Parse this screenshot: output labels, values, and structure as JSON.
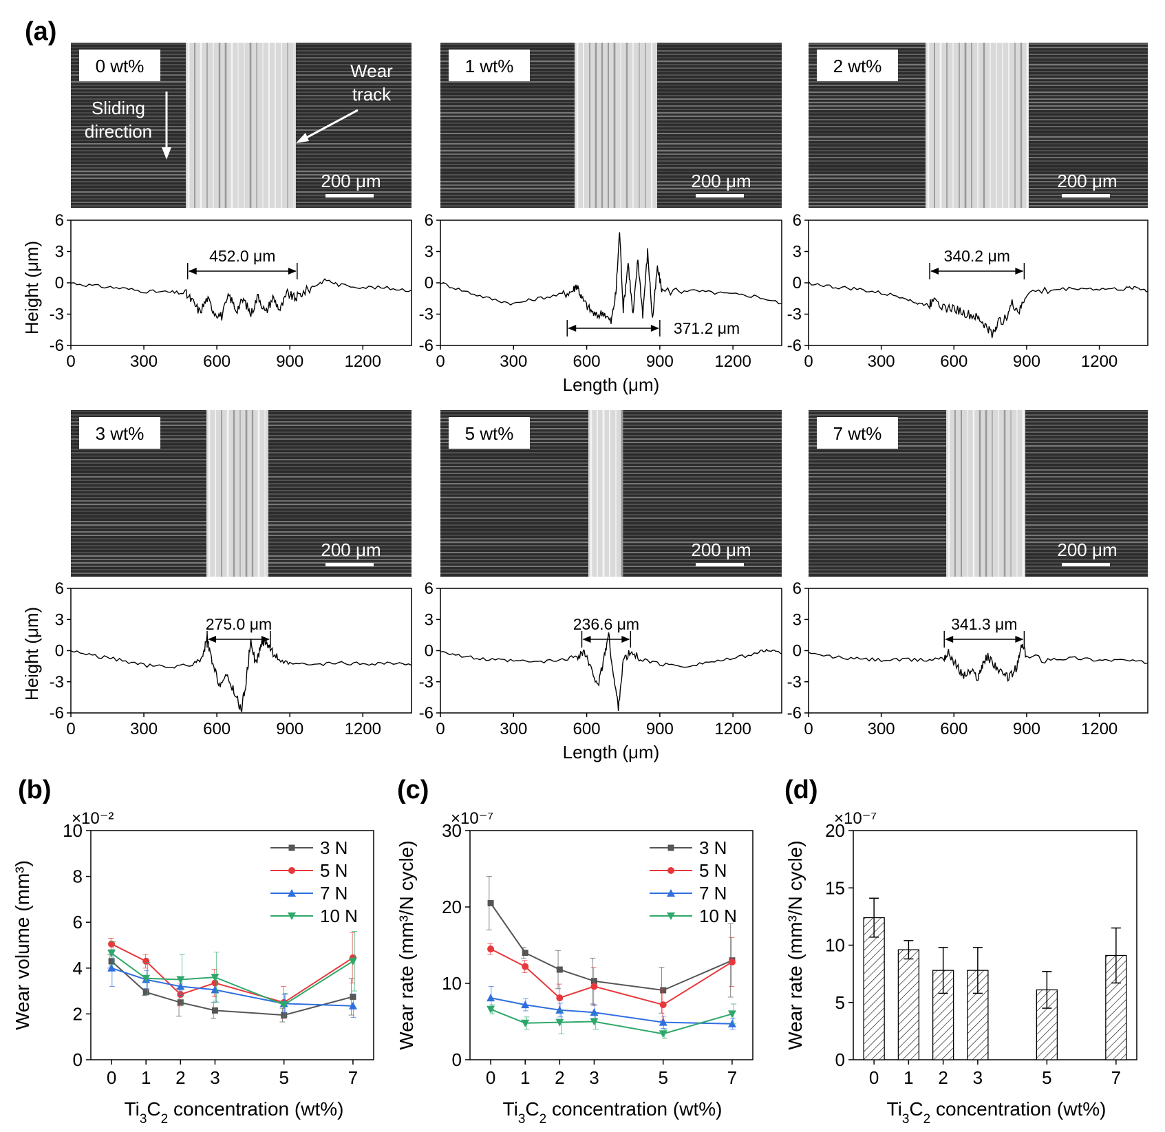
{
  "panel_labels": {
    "a": "(a)",
    "b": "(b)",
    "c": "(c)",
    "d": "(d)"
  },
  "micrographs": [
    {
      "label": "0 wt%",
      "scale_bar": "200 μm",
      "annotations": {
        "wear_track": [
          "Wear",
          "track"
        ],
        "sliding": [
          "Sliding",
          "direction"
        ]
      }
    },
    {
      "label": "1 wt%",
      "scale_bar": "200 μm"
    },
    {
      "label": "2 wt%",
      "scale_bar": "200 μm"
    },
    {
      "label": "3 wt%",
      "scale_bar": "200 μm"
    },
    {
      "label": "5 wt%",
      "scale_bar": "200 μm"
    },
    {
      "label": "7 wt%",
      "scale_bar": "200 μm"
    }
  ],
  "profile_axes": {
    "ylabel": "Height (μm)",
    "xlabel": "Length (μm)"
  },
  "legend_labels": [
    "3 N",
    "5 N",
    "7 N",
    "10 N"
  ],
  "series_colors": {
    "3 N": "#555555",
    "5 N": "#e8383b",
    "7 N": "#2f6fe0",
    "10 N": "#2ea86a"
  },
  "chart_data": [
    {
      "type": "line",
      "panel": "a-0wt",
      "x_range": [
        0,
        1400
      ],
      "ylim": [
        -6,
        6
      ],
      "xticks": [
        0,
        300,
        600,
        900,
        1200
      ],
      "yticks": [
        6,
        3,
        0,
        -3,
        -6
      ],
      "track_width_label": "452.0 μm",
      "track_start": 480,
      "track_end": 930,
      "label_pos": "top",
      "profile": [
        [
          0,
          0
        ],
        [
          100,
          -0.3
        ],
        [
          200,
          -0.5
        ],
        [
          300,
          -0.8
        ],
        [
          400,
          -0.9
        ],
        [
          470,
          -1.0
        ],
        [
          500,
          -1.8
        ],
        [
          530,
          -2.8
        ],
        [
          560,
          -1.5
        ],
        [
          590,
          -2.8
        ],
        [
          620,
          -3.2
        ],
        [
          650,
          -1.2
        ],
        [
          680,
          -2.6
        ],
        [
          710,
          -1.6
        ],
        [
          740,
          -3.0
        ],
        [
          770,
          -1.2
        ],
        [
          800,
          -2.9
        ],
        [
          830,
          -1.4
        ],
        [
          860,
          -2.6
        ],
        [
          890,
          -1.0
        ],
        [
          920,
          -1.5
        ],
        [
          950,
          -1.0
        ],
        [
          1000,
          -0.3
        ],
        [
          1050,
          0.3
        ],
        [
          1100,
          -0.2
        ],
        [
          1200,
          -0.4
        ],
        [
          1300,
          -0.5
        ],
        [
          1400,
          -0.7
        ]
      ]
    },
    {
      "type": "line",
      "panel": "a-1wt",
      "x_range": [
        0,
        1400
      ],
      "ylim": [
        -6,
        6
      ],
      "xticks": [
        0,
        300,
        600,
        900,
        1200
      ],
      "yticks": [
        6,
        3,
        0,
        -3,
        -6
      ],
      "track_width_label": "371.2 μm",
      "track_start": 520,
      "track_end": 900,
      "label_pos": "bottom",
      "profile": [
        [
          0,
          0
        ],
        [
          100,
          -0.8
        ],
        [
          200,
          -1.5
        ],
        [
          300,
          -2.0
        ],
        [
          400,
          -1.5
        ],
        [
          500,
          -1.1
        ],
        [
          540,
          -0.8
        ],
        [
          560,
          -0.2
        ],
        [
          580,
          -1.5
        ],
        [
          610,
          -2.5
        ],
        [
          640,
          -3.2
        ],
        [
          670,
          -2.8
        ],
        [
          700,
          -3.8
        ],
        [
          720,
          -1.0
        ],
        [
          735,
          5.0
        ],
        [
          750,
          -2.5
        ],
        [
          770,
          2.0
        ],
        [
          790,
          -3.2
        ],
        [
          810,
          2.3
        ],
        [
          830,
          -3.0
        ],
        [
          850,
          3.0
        ],
        [
          870,
          -3.5
        ],
        [
          890,
          1.4
        ],
        [
          910,
          -0.8
        ],
        [
          1000,
          -0.7
        ],
        [
          1100,
          -0.9
        ],
        [
          1200,
          -1.1
        ],
        [
          1300,
          -1.3
        ],
        [
          1400,
          -2.0
        ]
      ]
    },
    {
      "type": "line",
      "panel": "a-2wt",
      "x_range": [
        0,
        1400
      ],
      "ylim": [
        -6,
        6
      ],
      "xticks": [
        0,
        300,
        600,
        900,
        1200
      ],
      "yticks": [
        6,
        3,
        0,
        -3,
        -6
      ],
      "track_width_label": "340.2 μm",
      "track_start": 500,
      "track_end": 890,
      "label_pos": "top",
      "profile": [
        [
          0,
          0
        ],
        [
          100,
          -0.4
        ],
        [
          200,
          -0.6
        ],
        [
          300,
          -1.0
        ],
        [
          400,
          -1.4
        ],
        [
          450,
          -2.0
        ],
        [
          500,
          -2.1
        ],
        [
          520,
          -1.2
        ],
        [
          560,
          -2.5
        ],
        [
          600,
          -2.4
        ],
        [
          640,
          -2.9
        ],
        [
          680,
          -3.2
        ],
        [
          710,
          -3.6
        ],
        [
          740,
          -4.4
        ],
        [
          760,
          -4.9
        ],
        [
          780,
          -3.8
        ],
        [
          810,
          -3.5
        ],
        [
          840,
          -2.0
        ],
        [
          870,
          -2.8
        ],
        [
          900,
          -1.0
        ],
        [
          1000,
          -0.7
        ],
        [
          1100,
          -0.5
        ],
        [
          1200,
          -0.6
        ],
        [
          1300,
          -0.6
        ],
        [
          1350,
          -0.4
        ],
        [
          1400,
          -0.8
        ]
      ]
    },
    {
      "type": "line",
      "panel": "a-3wt",
      "x_range": [
        0,
        1400
      ],
      "ylim": [
        -6,
        6
      ],
      "xticks": [
        0,
        300,
        600,
        900,
        1200
      ],
      "yticks": [
        6,
        3,
        0,
        -3,
        -6
      ],
      "track_width_label": "275.0 μm",
      "track_start": 560,
      "track_end": 820,
      "label_pos": "top",
      "profile": [
        [
          0,
          0
        ],
        [
          100,
          -0.5
        ],
        [
          200,
          -0.9
        ],
        [
          300,
          -1.4
        ],
        [
          400,
          -1.6
        ],
        [
          500,
          -1.3
        ],
        [
          540,
          -0.8
        ],
        [
          560,
          1.2
        ],
        [
          580,
          -1.2
        ],
        [
          610,
          -3.2
        ],
        [
          640,
          -2.6
        ],
        [
          670,
          -3.8
        ],
        [
          700,
          -5.8
        ],
        [
          720,
          -3.0
        ],
        [
          740,
          1.1
        ],
        [
          760,
          -1.4
        ],
        [
          780,
          0.5
        ],
        [
          800,
          1.0
        ],
        [
          820,
          0.2
        ],
        [
          850,
          -0.8
        ],
        [
          900,
          -1.3
        ],
        [
          1000,
          -1.4
        ],
        [
          1100,
          -1.2
        ],
        [
          1200,
          -1.3
        ],
        [
          1300,
          -1.2
        ],
        [
          1400,
          -1.4
        ]
      ]
    },
    {
      "type": "line",
      "panel": "a-5wt",
      "x_range": [
        0,
        1400
      ],
      "ylim": [
        -6,
        6
      ],
      "xticks": [
        0,
        300,
        600,
        900,
        1200
      ],
      "yticks": [
        6,
        3,
        0,
        -3,
        -6
      ],
      "track_width_label": "236.6 μm",
      "track_start": 580,
      "track_end": 780,
      "label_pos": "top",
      "profile": [
        [
          0,
          0
        ],
        [
          100,
          -0.6
        ],
        [
          200,
          -0.9
        ],
        [
          300,
          -1.0
        ],
        [
          400,
          -1.1
        ],
        [
          500,
          -0.9
        ],
        [
          560,
          -0.5
        ],
        [
          590,
          -0.1
        ],
        [
          620,
          -2.0
        ],
        [
          650,
          -3.2
        ],
        [
          670,
          -0.8
        ],
        [
          690,
          1.6
        ],
        [
          710,
          -2.5
        ],
        [
          730,
          -5.4
        ],
        [
          750,
          -1.0
        ],
        [
          780,
          -0.2
        ],
        [
          820,
          -0.8
        ],
        [
          900,
          -1.3
        ],
        [
          1000,
          -1.5
        ],
        [
          1100,
          -1.1
        ],
        [
          1200,
          -0.8
        ],
        [
          1300,
          -0.2
        ],
        [
          1350,
          0.1
        ],
        [
          1400,
          -0.3
        ]
      ]
    },
    {
      "type": "line",
      "panel": "a-7wt",
      "x_range": [
        0,
        1400
      ],
      "ylim": [
        -6,
        6
      ],
      "xticks": [
        0,
        300,
        600,
        900,
        1200
      ],
      "yticks": [
        6,
        3,
        0,
        -3,
        -6
      ],
      "track_width_label": "341.3 μm",
      "track_start": 560,
      "track_end": 890,
      "label_pos": "top",
      "profile": [
        [
          0,
          -0.3
        ],
        [
          100,
          -0.6
        ],
        [
          200,
          -0.8
        ],
        [
          300,
          -0.9
        ],
        [
          400,
          -0.9
        ],
        [
          500,
          -0.9
        ],
        [
          560,
          -0.6
        ],
        [
          580,
          -0.2
        ],
        [
          610,
          -1.5
        ],
        [
          640,
          -2.4
        ],
        [
          670,
          -2.0
        ],
        [
          700,
          -2.6
        ],
        [
          720,
          -1.1
        ],
        [
          740,
          -0.6
        ],
        [
          770,
          -1.4
        ],
        [
          800,
          -2.4
        ],
        [
          830,
          -2.5
        ],
        [
          860,
          -1.6
        ],
        [
          880,
          0.6
        ],
        [
          900,
          -0.6
        ],
        [
          1000,
          -0.8
        ],
        [
          1100,
          -0.7
        ],
        [
          1200,
          -0.9
        ],
        [
          1300,
          -0.9
        ],
        [
          1400,
          -1.2
        ]
      ]
    },
    {
      "type": "line",
      "panel": "b",
      "ylabel": "Wear volume (mm³)",
      "xlabel_parts": [
        "Ti",
        "3",
        "C",
        "2",
        " concentration (wt%)"
      ],
      "multiplier": "×10⁻²",
      "x": [
        0,
        1,
        2,
        3,
        5,
        7
      ],
      "xlim": [
        -0.6,
        7.6
      ],
      "ylim": [
        0,
        10
      ],
      "yticks": [
        0,
        2,
        4,
        6,
        8,
        10
      ],
      "legend": "top-right",
      "series": [
        {
          "name": "3 N",
          "values": [
            4.3,
            2.95,
            2.5,
            2.15,
            1.95,
            2.75
          ],
          "errors": [
            0.3,
            0.15,
            0.6,
            0.35,
            0.3,
            0.8
          ]
        },
        {
          "name": "5 N",
          "values": [
            5.05,
            4.3,
            2.85,
            3.35,
            2.5,
            4.45
          ],
          "errors": [
            0.25,
            0.3,
            0.5,
            0.6,
            0.7,
            1.1
          ]
        },
        {
          "name": "7 N",
          "values": [
            4.0,
            3.5,
            3.2,
            3.05,
            2.45,
            2.35
          ],
          "errors": [
            0.8,
            0.4,
            0.4,
            0.5,
            0.4,
            0.5
          ]
        },
        {
          "name": "10 N",
          "values": [
            4.65,
            3.55,
            3.5,
            3.6,
            2.4,
            4.3
          ],
          "errors": [
            0.5,
            0.7,
            1.1,
            1.1,
            0.5,
            1.3
          ]
        }
      ]
    },
    {
      "type": "line",
      "panel": "c",
      "ylabel": "Wear rate (mm³/N cycle)",
      "xlabel_parts": [
        "Ti",
        "3",
        "C",
        "2",
        " concentration (wt%)"
      ],
      "multiplier": "×10⁻⁷",
      "x": [
        0,
        1,
        2,
        3,
        5,
        7
      ],
      "xlim": [
        -0.6,
        7.6
      ],
      "ylim": [
        0,
        30
      ],
      "yticks": [
        0,
        10,
        20,
        30
      ],
      "legend": "top-right",
      "series": [
        {
          "name": "3 N",
          "values": [
            20.5,
            14.0,
            11.8,
            10.3,
            9.1,
            13.0
          ],
          "errors": [
            3.5,
            0.7,
            2.5,
            3.0,
            3.0,
            4.8
          ]
        },
        {
          "name": "5 N",
          "values": [
            14.5,
            12.2,
            8.1,
            9.6,
            7.2,
            12.8
          ],
          "errors": [
            0.7,
            0.8,
            1.8,
            2.5,
            2.0,
            3.2
          ]
        },
        {
          "name": "7 N",
          "values": [
            8.1,
            7.2,
            6.5,
            6.2,
            4.9,
            4.7
          ],
          "errors": [
            1.5,
            0.8,
            0.9,
            1.0,
            0.8,
            0.7
          ]
        },
        {
          "name": "10 N",
          "values": [
            6.6,
            4.8,
            4.9,
            5.0,
            3.4,
            6.0
          ],
          "errors": [
            0.6,
            0.8,
            1.5,
            1.0,
            0.6,
            1.3
          ]
        }
      ]
    },
    {
      "type": "bar",
      "panel": "d",
      "ylabel": "Wear rate (mm³/N cycle)",
      "xlabel_parts": [
        "Ti",
        "3",
        "C",
        "2",
        " concentration (wt%)"
      ],
      "multiplier": "×10⁻⁷",
      "x": [
        0,
        1,
        2,
        3,
        5,
        7
      ],
      "xlim": [
        -0.6,
        7.6
      ],
      "ylim": [
        0,
        20
      ],
      "yticks": [
        0,
        5,
        10,
        15,
        20
      ],
      "values": [
        12.4,
        9.6,
        7.8,
        7.8,
        6.1,
        9.1
      ],
      "errors": [
        1.7,
        0.8,
        2.0,
        2.0,
        1.6,
        2.4
      ]
    }
  ]
}
